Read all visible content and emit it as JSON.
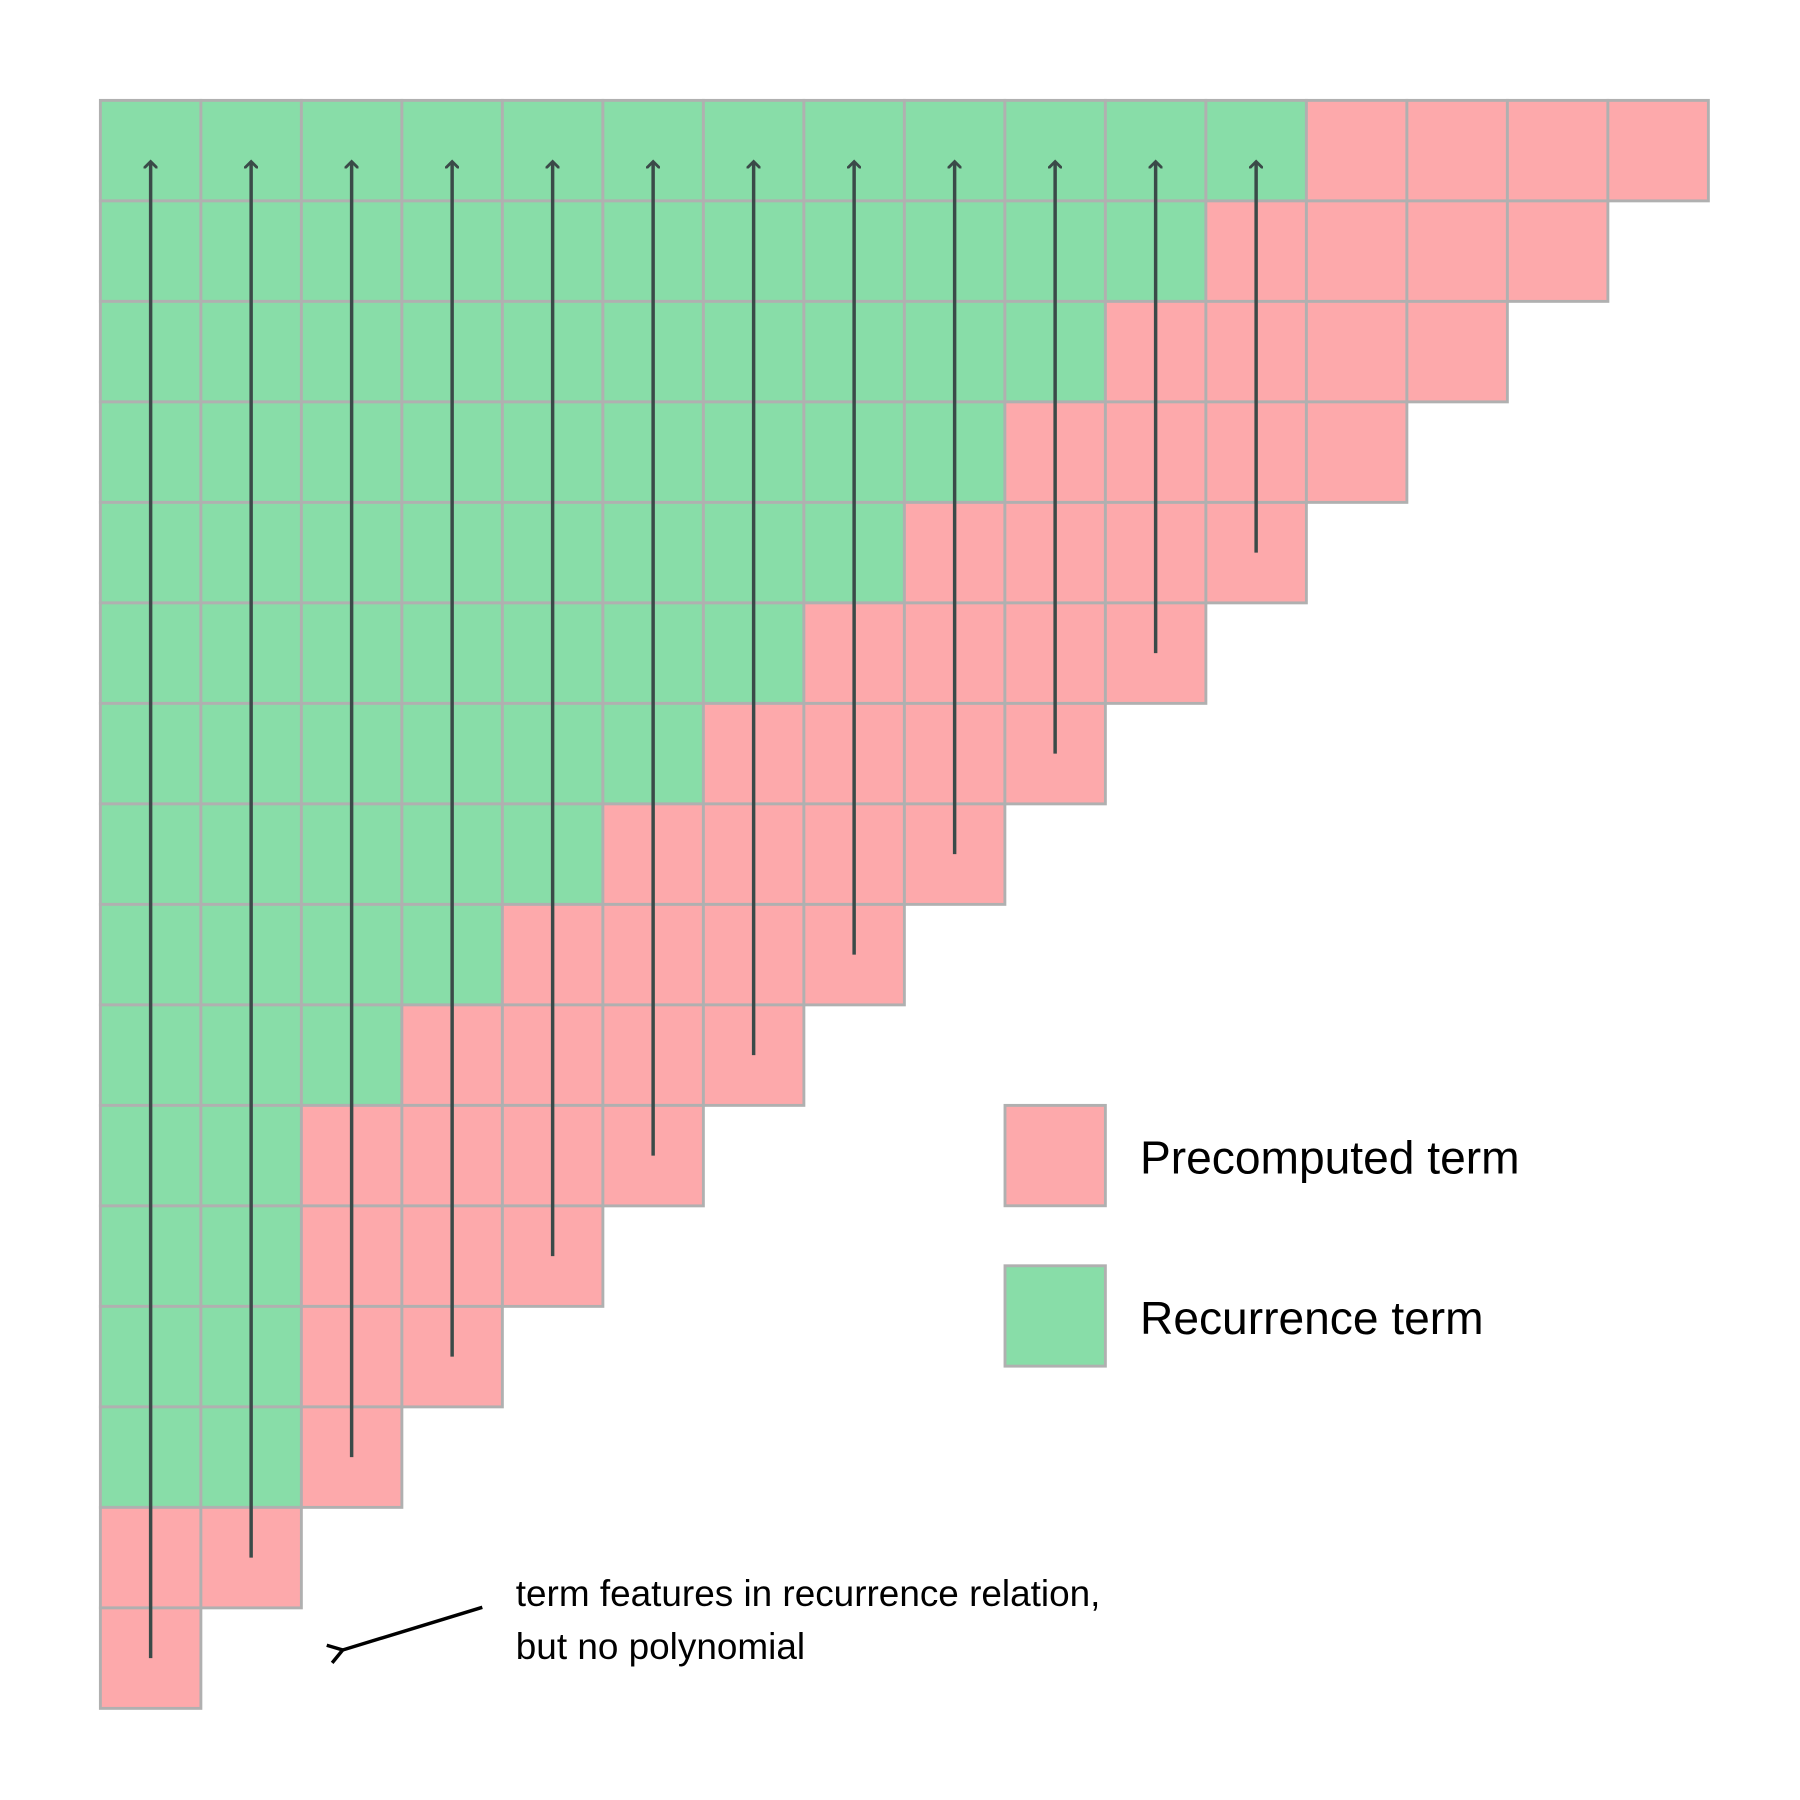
{
  "colors": {
    "precomputed": "#fda9ab",
    "recurrence": "#88dda8",
    "cell_border": "#b0b0b0",
    "arrow": "#3a4a48",
    "annotation": "#000000"
  },
  "legend": {
    "precomputed_label": "Precomputed term",
    "recurrence_label": "Recurrence term"
  },
  "annotation": {
    "line1": "term features in recurrence relation,",
    "line2": "but no polynomial"
  }
}
